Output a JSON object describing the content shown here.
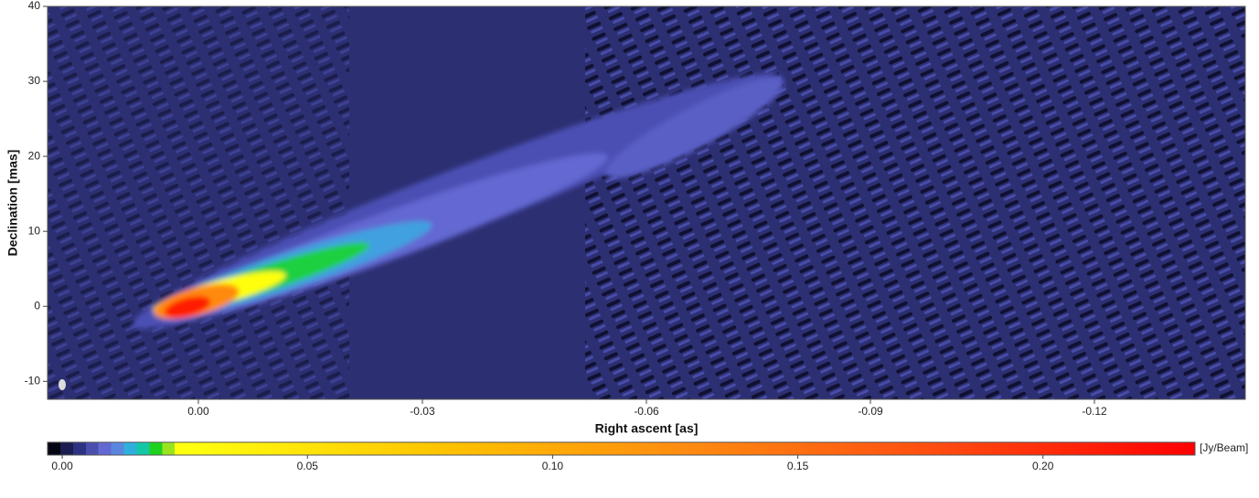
{
  "chart_data": {
    "type": "contour-image",
    "x_label": "Right ascent [as]",
    "y_label": "Declination [mas]",
    "xlim": [
      0.0202,
      -0.1402
    ],
    "ylim": [
      -12.4,
      40
    ],
    "xticks": [
      {
        "value": 0,
        "label": "0.00"
      },
      -0.03,
      -0.06,
      -0.09,
      -0.12
    ],
    "yticks": [
      -10,
      0,
      10,
      20,
      30,
      40
    ],
    "colorbar": {
      "unit_label": "[Jy/Beam]",
      "lim": [
        -0.003,
        0.231
      ],
      "ticks": [
        {
          "value": 0,
          "label": "0.00"
        },
        0.05,
        {
          "value": 0.1,
          "label": "0.10"
        },
        0.15,
        {
          "value": 0.2,
          "label": "0.20"
        }
      ],
      "colors": [
        "#050514",
        "#1c1d50",
        "#2e3282",
        "#4a4fae",
        "#6468d2",
        "#5a86e0",
        "#2fb0dc",
        "#14c8a6",
        "#1ed21e",
        "#9ae41e",
        "#ffff10",
        "#ffc400",
        "#ff8a10",
        "#ff4a10",
        "#ff0000"
      ]
    }
  }
}
